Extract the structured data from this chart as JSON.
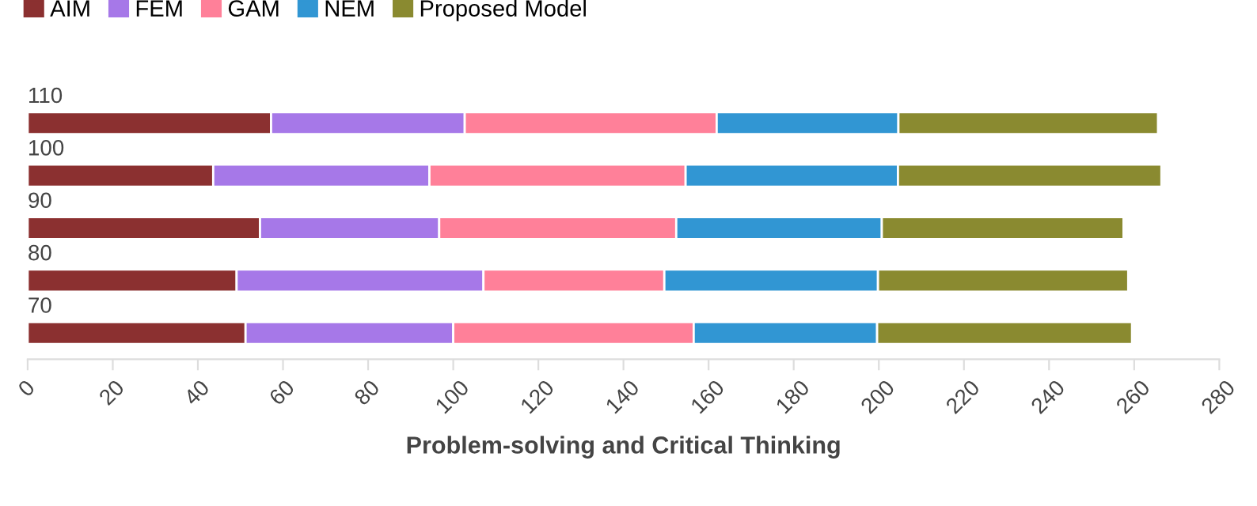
{
  "chart_data": {
    "type": "bar",
    "orientation": "horizontal",
    "stacked": true,
    "xlabel": "Problem-solving and Critical Thinking",
    "categories": [
      "110",
      "100",
      "90",
      "80",
      "70"
    ],
    "series": [
      {
        "name": "AIM",
        "color": "#8b3030",
        "values": [
          57.2,
          43.6,
          54.6,
          49.1,
          51.2
        ]
      },
      {
        "name": "FEM",
        "color": "#a678e8",
        "values": [
          45.5,
          50.8,
          42.1,
          58.0,
          48.8
        ]
      },
      {
        "name": "GAM",
        "color": "#ff8099",
        "values": [
          59.2,
          60.2,
          55.7,
          42.5,
          56.5
        ]
      },
      {
        "name": "NEM",
        "color": "#3196d3",
        "values": [
          42.7,
          49.9,
          48.3,
          50.2,
          43.1
        ]
      },
      {
        "name": "Proposed Model",
        "color": "#8a8a30",
        "values": [
          61.0,
          61.9,
          56.8,
          58.8,
          59.9
        ]
      }
    ],
    "xlim": [
      0,
      280
    ],
    "xticks": [
      0,
      20,
      40,
      60,
      80,
      100,
      120,
      140,
      160,
      180,
      200,
      220,
      240,
      260,
      280
    ],
    "legend": "top left",
    "grid": false
  }
}
